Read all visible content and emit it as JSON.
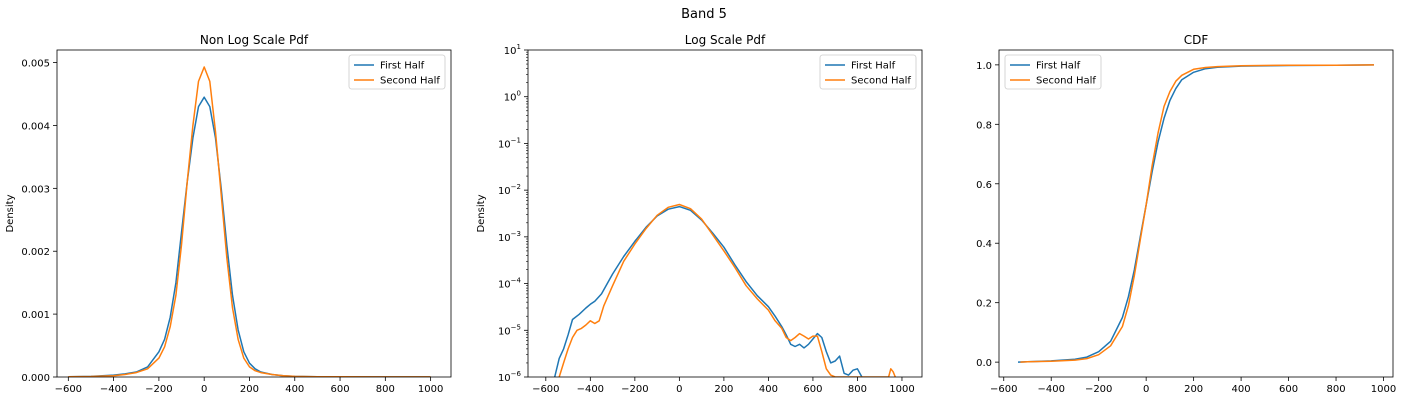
{
  "figure_title": "Band 5",
  "colors": {
    "first": "#1f77b4",
    "second": "#ff7f0e"
  },
  "chart_data": [
    {
      "type": "line",
      "title": "Non Log Scale Pdf",
      "xlabel": "",
      "ylabel": "Density",
      "xlim": [
        -650,
        1090
      ],
      "ylim": [
        0,
        0.0052
      ],
      "xticks": [
        -600,
        -400,
        -200,
        0,
        200,
        400,
        600,
        800,
        1000
      ],
      "xtick_labels": [
        "−600",
        "−400",
        "−200",
        "0",
        "200",
        "400",
        "600",
        "800",
        "1000"
      ],
      "yticks": [
        0,
        0.001,
        0.002,
        0.003,
        0.004,
        0.005
      ],
      "ytick_labels": [
        "0.000",
        "0.001",
        "0.002",
        "0.003",
        "0.004",
        "0.005"
      ],
      "legend_position": "top-right",
      "series": [
        {
          "name": "First Half",
          "x": [
            -600,
            -500,
            -400,
            -350,
            -300,
            -250,
            -200,
            -175,
            -150,
            -125,
            -100,
            -75,
            -50,
            -25,
            0,
            25,
            50,
            75,
            100,
            125,
            150,
            175,
            200,
            225,
            250,
            300,
            350,
            400,
            500,
            600,
            800,
            1000
          ],
          "y": [
            5e-06,
            1e-05,
            3e-05,
            5e-05,
            8e-05,
            0.00016,
            0.0004,
            0.0006,
            0.00095,
            0.0015,
            0.0023,
            0.0031,
            0.0038,
            0.0043,
            0.00445,
            0.0043,
            0.0038,
            0.003,
            0.0021,
            0.0013,
            0.00075,
            0.0004,
            0.00022,
            0.00013,
            8e-05,
            4e-05,
            2e-05,
            1e-05,
            5e-06,
            4e-06,
            2e-06,
            1e-06
          ]
        },
        {
          "name": "Second Half",
          "x": [
            -600,
            -500,
            -400,
            -350,
            -300,
            -250,
            -200,
            -175,
            -150,
            -125,
            -100,
            -75,
            -50,
            -25,
            0,
            25,
            50,
            75,
            100,
            125,
            150,
            175,
            200,
            225,
            250,
            300,
            350,
            400,
            500,
            600,
            800,
            1000
          ],
          "y": [
            3e-06,
            8e-06,
            2e-05,
            4e-05,
            7e-05,
            0.00013,
            0.0003,
            0.00048,
            0.0008,
            0.0013,
            0.0021,
            0.0031,
            0.004,
            0.0047,
            0.00493,
            0.0047,
            0.0039,
            0.0029,
            0.0019,
            0.0011,
            0.0006,
            0.0003,
            0.00016,
            0.0001,
            7e-05,
            4e-05,
            2e-05,
            1e-05,
            5e-06,
            4e-06,
            2e-06,
            1e-06
          ]
        }
      ]
    },
    {
      "type": "line",
      "title": "Log Scale Pdf",
      "xlabel": "",
      "ylabel": "Density",
      "xlim": [
        -680,
        1090
      ],
      "ylim": [
        1e-06,
        10
      ],
      "log_y": true,
      "xticks": [
        -600,
        -400,
        -200,
        0,
        200,
        400,
        600,
        800,
        1000
      ],
      "xtick_labels": [
        "−600",
        "−400",
        "−200",
        "0",
        "200",
        "400",
        "600",
        "800",
        "1000"
      ],
      "yticks": [
        1e-06,
        1e-05,
        0.0001,
        0.001,
        0.01,
        0.1,
        1,
        10
      ],
      "ytick_labels": [
        [
          "10",
          "−6"
        ],
        [
          "10",
          "−5"
        ],
        [
          "10",
          "−4"
        ],
        [
          "10",
          "−3"
        ],
        [
          "10",
          "−2"
        ],
        [
          "10",
          "−1"
        ],
        [
          "10",
          "0"
        ],
        [
          "10",
          "1"
        ]
      ],
      "legend_position": "top-right",
      "series": [
        {
          "name": "First Half",
          "x": [
            -560,
            -540,
            -520,
            -500,
            -480,
            -450,
            -420,
            -400,
            -380,
            -350,
            -300,
            -250,
            -200,
            -150,
            -100,
            -50,
            0,
            50,
            100,
            150,
            200,
            250,
            300,
            350,
            400,
            430,
            460,
            480,
            500,
            520,
            540,
            560,
            580,
            600,
            620,
            640,
            660,
            680,
            700,
            720,
            740,
            760,
            780,
            800,
            820
          ],
          "y": [
            1e-06,
            2.5e-06,
            4e-06,
            8e-06,
            1.7e-05,
            2.2e-05,
            3e-05,
            3.6e-05,
            4.2e-05,
            6e-05,
            0.00016,
            0.00038,
            0.0008,
            0.0016,
            0.0028,
            0.0039,
            0.00445,
            0.0037,
            0.0023,
            0.0012,
            0.0006,
            0.00025,
            0.00011,
            5.5e-05,
            3.2e-05,
            2e-05,
            1.2e-05,
            8e-06,
            5e-06,
            4.5e-06,
            5e-06,
            4.2e-06,
            5e-06,
            6.5e-06,
            8.5e-06,
            7e-06,
            3.5e-06,
            2e-06,
            2.2e-06,
            2.8e-06,
            1.2e-06,
            1.1e-06,
            1.4e-06,
            1.5e-06,
            1e-06
          ]
        },
        {
          "name": "Second Half",
          "x": [
            -540,
            -520,
            -500,
            -480,
            -460,
            -440,
            -420,
            -400,
            -380,
            -360,
            -340,
            -300,
            -250,
            -200,
            -150,
            -100,
            -50,
            0,
            50,
            100,
            150,
            200,
            250,
            300,
            350,
            400,
            430,
            460,
            480,
            500,
            520,
            540,
            560,
            580,
            600,
            620,
            640,
            660,
            680,
            700,
            940,
            950,
            960,
            970
          ],
          "y": [
            1e-06,
            2e-06,
            4e-06,
            7e-06,
            1e-05,
            1.1e-05,
            1.3e-05,
            1.6e-05,
            1.4e-05,
            1.6e-05,
            3.3e-05,
            9e-05,
            0.0003,
            0.0007,
            0.0015,
            0.0029,
            0.0043,
            0.00493,
            0.004,
            0.0024,
            0.0011,
            0.0005,
            0.00022,
            9e-05,
            4.7e-05,
            2.7e-05,
            1.6e-05,
            1.1e-05,
            7e-06,
            6e-06,
            7e-06,
            8.5e-06,
            7.5e-06,
            6.5e-06,
            7.5e-06,
            7.5e-06,
            3.5e-06,
            1.5e-06,
            1.1e-06,
            1e-06,
            1e-06,
            1.5e-06,
            1.3e-06,
            1e-06
          ]
        }
      ]
    },
    {
      "type": "line",
      "title": "CDF",
      "xlabel": "",
      "ylabel": "",
      "xlim": [
        -620,
        1040
      ],
      "ylim": [
        -0.05,
        1.05
      ],
      "xticks": [
        -600,
        -400,
        -200,
        0,
        200,
        400,
        600,
        800,
        1000
      ],
      "xtick_labels": [
        "−600",
        "−400",
        "−200",
        "0",
        "200",
        "400",
        "600",
        "800",
        "1000"
      ],
      "yticks": [
        0,
        0.2,
        0.4,
        0.6,
        0.8,
        1.0
      ],
      "ytick_labels": [
        "0.0",
        "0.2",
        "0.4",
        "0.6",
        "0.8",
        "1.0"
      ],
      "legend_position": "top-left",
      "series": [
        {
          "name": "First Half",
          "x": [
            -540,
            -500,
            -400,
            -300,
            -250,
            -200,
            -150,
            -100,
            -75,
            -50,
            -25,
            0,
            25,
            50,
            75,
            100,
            125,
            150,
            200,
            250,
            300,
            400,
            600,
            800,
            960
          ],
          "y": [
            0,
            0.001,
            0.004,
            0.01,
            0.017,
            0.035,
            0.07,
            0.15,
            0.22,
            0.31,
            0.42,
            0.53,
            0.64,
            0.74,
            0.82,
            0.88,
            0.92,
            0.95,
            0.975,
            0.987,
            0.992,
            0.996,
            0.998,
            0.999,
            1.0
          ]
        },
        {
          "name": "Second Half",
          "x": [
            -530,
            -500,
            -400,
            -300,
            -250,
            -200,
            -150,
            -100,
            -75,
            -50,
            -25,
            0,
            25,
            50,
            75,
            100,
            125,
            150,
            200,
            250,
            300,
            400,
            600,
            800,
            960
          ],
          "y": [
            0,
            0.001,
            0.003,
            0.007,
            0.012,
            0.025,
            0.055,
            0.12,
            0.19,
            0.29,
            0.41,
            0.53,
            0.66,
            0.77,
            0.86,
            0.91,
            0.945,
            0.965,
            0.985,
            0.991,
            0.994,
            0.997,
            0.999,
            0.999,
            1.0
          ]
        }
      ]
    }
  ]
}
